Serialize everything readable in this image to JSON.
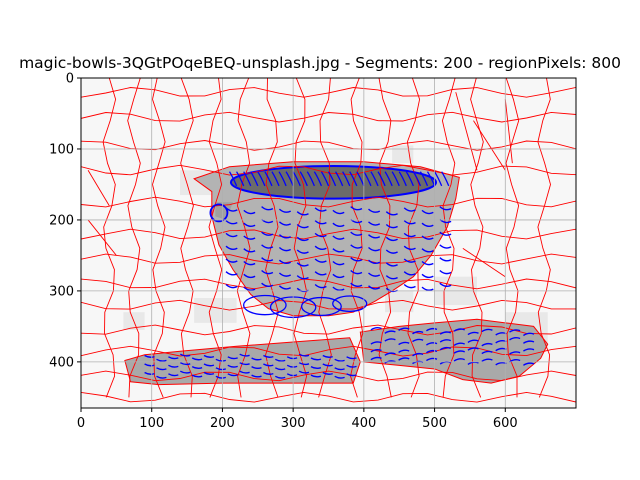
{
  "chart_data": {
    "type": "image",
    "title": "magic-bowls-3QGtPOqeBEQ-unsplash.jpg - Segments: 200 - regionPixels: 800",
    "xlim": [
      0,
      700
    ],
    "ylim": [
      465,
      0
    ],
    "y_inverted": true,
    "xticks": [
      0,
      100,
      200,
      300,
      400,
      500,
      600
    ],
    "yticks": [
      0,
      100,
      200,
      300,
      400
    ],
    "xtick_labels": [
      "0",
      "100",
      "200",
      "300",
      "400",
      "500",
      "600"
    ],
    "ytick_labels": [
      "0",
      "100",
      "200",
      "300",
      "400"
    ],
    "grid": true,
    "colors": {
      "segment_boundaries": "#ff0000",
      "contours": "#0000ff",
      "grid": "#b0b0b0",
      "background_regions": "#f7f7f7",
      "object_regions": "#a9a9a9"
    },
    "objects": [
      "bowl",
      "saucer-left",
      "saucer-right"
    ]
  }
}
